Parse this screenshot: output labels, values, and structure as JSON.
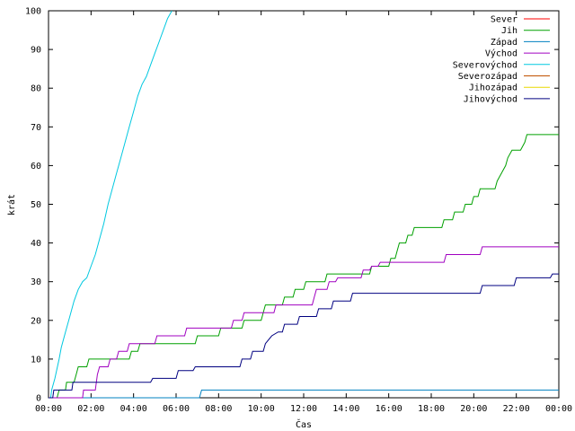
{
  "chart_data": {
    "type": "line",
    "title": "",
    "xlabel": "Čas",
    "ylabel": "krát",
    "xlim": [
      0,
      24
    ],
    "ylim": [
      0,
      100
    ],
    "x_ticks": [
      {
        "value": 0,
        "label": "00:00"
      },
      {
        "value": 2,
        "label": "02:00"
      },
      {
        "value": 4,
        "label": "04:00"
      },
      {
        "value": 6,
        "label": "06:00"
      },
      {
        "value": 8,
        "label": "08:00"
      },
      {
        "value": 10,
        "label": "10:00"
      },
      {
        "value": 12,
        "label": "12:00"
      },
      {
        "value": 14,
        "label": "14:00"
      },
      {
        "value": 16,
        "label": "16:00"
      },
      {
        "value": 18,
        "label": "18:00"
      },
      {
        "value": 20,
        "label": "20:00"
      },
      {
        "value": 22,
        "label": "22:00"
      },
      {
        "value": 24,
        "label": "00:00"
      }
    ],
    "y_ticks": [
      0,
      10,
      20,
      30,
      40,
      50,
      60,
      70,
      80,
      90,
      100
    ],
    "grid": false,
    "legend_position": "top-right",
    "series": [
      {
        "name": "Sever",
        "color": "#ff0000",
        "points": []
      },
      {
        "name": "Jih",
        "color": "#00a000",
        "points": [
          [
            0,
            0
          ],
          [
            0.4,
            0
          ],
          [
            0.5,
            2
          ],
          [
            0.8,
            2
          ],
          [
            0.85,
            4
          ],
          [
            1.2,
            4
          ],
          [
            1.3,
            6
          ],
          [
            1.4,
            8
          ],
          [
            1.8,
            8
          ],
          [
            1.9,
            10
          ],
          [
            3.8,
            10
          ],
          [
            3.9,
            12
          ],
          [
            4.2,
            12
          ],
          [
            4.3,
            14
          ],
          [
            6.9,
            14
          ],
          [
            7.0,
            16
          ],
          [
            8.0,
            16
          ],
          [
            8.1,
            18
          ],
          [
            9.1,
            18
          ],
          [
            9.2,
            20
          ],
          [
            10.0,
            20
          ],
          [
            10.1,
            22
          ],
          [
            10.2,
            24
          ],
          [
            11.0,
            24
          ],
          [
            11.1,
            26
          ],
          [
            11.5,
            26
          ],
          [
            11.6,
            28
          ],
          [
            12.0,
            28
          ],
          [
            12.1,
            30
          ],
          [
            13.0,
            30
          ],
          [
            13.1,
            32
          ],
          [
            15.1,
            32
          ],
          [
            15.2,
            34
          ],
          [
            16.0,
            34
          ],
          [
            16.1,
            36
          ],
          [
            16.3,
            36
          ],
          [
            16.4,
            38
          ],
          [
            16.5,
            40
          ],
          [
            16.8,
            40
          ],
          [
            16.9,
            42
          ],
          [
            17.1,
            42
          ],
          [
            17.2,
            44
          ],
          [
            18.5,
            44
          ],
          [
            18.6,
            46
          ],
          [
            19.0,
            46
          ],
          [
            19.1,
            48
          ],
          [
            19.5,
            48
          ],
          [
            19.6,
            50
          ],
          [
            19.9,
            50
          ],
          [
            20.0,
            52
          ],
          [
            20.2,
            52
          ],
          [
            20.3,
            54
          ],
          [
            21.0,
            54
          ],
          [
            21.1,
            56
          ],
          [
            21.3,
            58
          ],
          [
            21.5,
            60
          ],
          [
            21.6,
            62
          ],
          [
            21.8,
            64
          ],
          [
            22.2,
            64
          ],
          [
            22.4,
            66
          ],
          [
            22.5,
            68
          ],
          [
            24,
            68
          ]
        ]
      },
      {
        "name": "Západ",
        "color": "#0080c0",
        "points": [
          [
            0,
            0
          ],
          [
            7.1,
            0
          ],
          [
            7.2,
            2
          ],
          [
            24,
            2
          ]
        ]
      },
      {
        "name": "Východ",
        "color": "#a000c0",
        "points": [
          [
            0,
            0
          ],
          [
            1.6,
            0
          ],
          [
            1.65,
            2
          ],
          [
            2.2,
            2
          ],
          [
            2.3,
            6
          ],
          [
            2.4,
            8
          ],
          [
            2.8,
            8
          ],
          [
            2.9,
            10
          ],
          [
            3.2,
            10
          ],
          [
            3.3,
            12
          ],
          [
            3.7,
            12
          ],
          [
            3.8,
            14
          ],
          [
            5.0,
            14
          ],
          [
            5.1,
            16
          ],
          [
            6.4,
            16
          ],
          [
            6.5,
            18
          ],
          [
            8.6,
            18
          ],
          [
            8.7,
            20
          ],
          [
            9.1,
            20
          ],
          [
            9.2,
            22
          ],
          [
            10.6,
            22
          ],
          [
            10.7,
            24
          ],
          [
            12.4,
            24
          ],
          [
            12.5,
            26
          ],
          [
            12.6,
            28
          ],
          [
            13.1,
            28
          ],
          [
            13.2,
            30
          ],
          [
            13.5,
            30
          ],
          [
            13.6,
            31
          ],
          [
            14.7,
            31
          ],
          [
            14.8,
            33
          ],
          [
            15.1,
            33
          ],
          [
            15.2,
            34
          ],
          [
            15.5,
            34
          ],
          [
            15.6,
            35
          ],
          [
            18.6,
            35
          ],
          [
            18.7,
            37
          ],
          [
            20.3,
            37
          ],
          [
            20.4,
            39
          ],
          [
            24,
            39
          ]
        ]
      },
      {
        "name": "Severovýchod",
        "color": "#00c8e0",
        "points": [
          [
            0,
            0
          ],
          [
            0.1,
            0
          ],
          [
            0.15,
            2
          ],
          [
            0.3,
            5
          ],
          [
            0.5,
            10
          ],
          [
            0.6,
            13
          ],
          [
            0.8,
            17
          ],
          [
            1.0,
            21
          ],
          [
            1.2,
            25
          ],
          [
            1.4,
            28
          ],
          [
            1.6,
            30
          ],
          [
            1.8,
            31
          ],
          [
            2.0,
            34
          ],
          [
            2.2,
            37
          ],
          [
            2.4,
            41
          ],
          [
            2.6,
            45
          ],
          [
            2.8,
            50
          ],
          [
            3.0,
            54
          ],
          [
            3.2,
            58
          ],
          [
            3.4,
            62
          ],
          [
            3.6,
            66
          ],
          [
            3.8,
            70
          ],
          [
            4.0,
            74
          ],
          [
            4.2,
            78
          ],
          [
            4.4,
            81
          ],
          [
            4.6,
            83
          ],
          [
            4.8,
            86
          ],
          [
            5.0,
            89
          ],
          [
            5.2,
            92
          ],
          [
            5.4,
            95
          ],
          [
            5.6,
            98
          ],
          [
            5.8,
            100
          ]
        ]
      },
      {
        "name": "Severozápad",
        "color": "#c05000",
        "points": []
      },
      {
        "name": "Jihozápad",
        "color": "#e8d800",
        "points": []
      },
      {
        "name": "Jihovýchod",
        "color": "#000080",
        "points": [
          [
            0,
            0
          ],
          [
            0.2,
            0
          ],
          [
            0.25,
            2
          ],
          [
            1.1,
            2
          ],
          [
            1.15,
            4
          ],
          [
            4.8,
            4
          ],
          [
            4.9,
            5
          ],
          [
            6.0,
            5
          ],
          [
            6.1,
            7
          ],
          [
            6.8,
            7
          ],
          [
            6.9,
            8
          ],
          [
            9.0,
            8
          ],
          [
            9.1,
            10
          ],
          [
            9.5,
            10
          ],
          [
            9.6,
            12
          ],
          [
            10.1,
            12
          ],
          [
            10.2,
            14
          ],
          [
            10.5,
            16
          ],
          [
            10.8,
            17
          ],
          [
            11.0,
            17
          ],
          [
            11.1,
            19
          ],
          [
            11.7,
            19
          ],
          [
            11.8,
            21
          ],
          [
            12.6,
            21
          ],
          [
            12.7,
            23
          ],
          [
            13.3,
            23
          ],
          [
            13.4,
            25
          ],
          [
            14.2,
            25
          ],
          [
            14.3,
            27
          ],
          [
            20.3,
            27
          ],
          [
            20.4,
            29
          ],
          [
            21.9,
            29
          ],
          [
            22.0,
            31
          ],
          [
            23.6,
            31
          ],
          [
            23.7,
            32
          ],
          [
            24,
            32
          ]
        ]
      }
    ]
  }
}
